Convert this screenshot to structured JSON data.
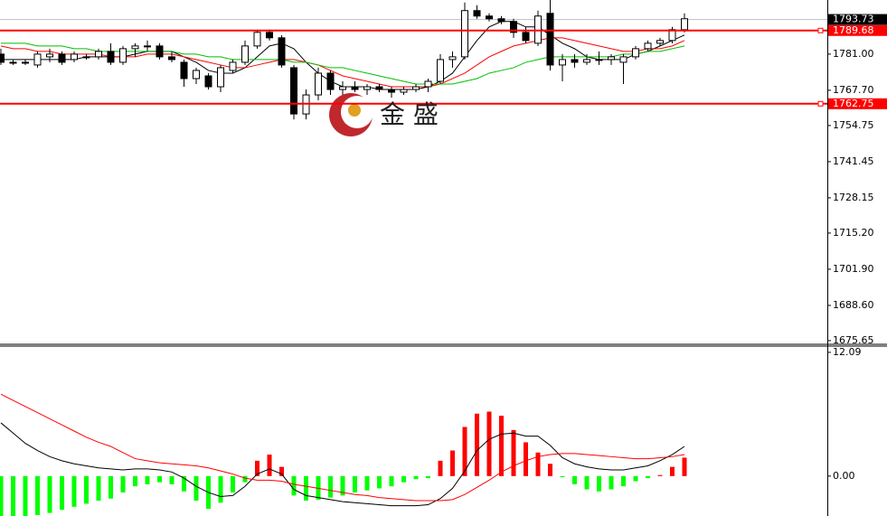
{
  "chart_data": [
    {
      "type": "candlestick",
      "open": [
        1781,
        1778,
        1778,
        1777,
        1780,
        1781,
        1779,
        1780,
        1780,
        1782,
        1778,
        1783,
        1784,
        1784,
        1780,
        1778,
        1772,
        1773,
        1769,
        1775,
        1778,
        1784,
        1789,
        1787,
        1776,
        1759,
        1766,
        1774,
        1768,
        1769,
        1768,
        1769,
        1768,
        1767,
        1768,
        1769,
        1771,
        1779,
        1780,
        1797,
        1795,
        1794,
        1793,
        1789,
        1785,
        1796,
        1777,
        1779,
        1778,
        1779,
        1779,
        1778,
        1780,
        1783,
        1785,
        1786,
        1790
      ],
      "high": [
        1783,
        1779,
        1779,
        1782,
        1783,
        1782,
        1782,
        1781,
        1783,
        1785,
        1784,
        1785,
        1786,
        1785,
        1782,
        1779,
        1776,
        1774,
        1777,
        1779,
        1786,
        1790,
        1790,
        1788,
        1777,
        1768,
        1776,
        1775,
        1771,
        1771,
        1770,
        1770,
        1769,
        1769,
        1770,
        1772,
        1781,
        1782,
        1800,
        1799,
        1796,
        1795,
        1794,
        1791,
        1797,
        1801,
        1781,
        1781,
        1781,
        1782,
        1781,
        1781,
        1784,
        1786,
        1787,
        1791,
        1796
      ],
      "low": [
        1777,
        1777,
        1777,
        1776,
        1778,
        1777,
        1778,
        1779,
        1779,
        1777,
        1777,
        1780,
        1782,
        1779,
        1778,
        1769,
        1770,
        1768,
        1767,
        1774,
        1777,
        1783,
        1786,
        1776,
        1757,
        1757,
        1764,
        1766,
        1766,
        1767,
        1766,
        1767,
        1765,
        1766,
        1767,
        1767,
        1770,
        1776,
        1779,
        1794,
        1793,
        1792,
        1787,
        1785,
        1784,
        1775,
        1771,
        1776,
        1777,
        1777,
        1777,
        1770,
        1779,
        1782,
        1784,
        1785,
        1789
      ],
      "close": [
        1778,
        1778,
        1778,
        1781,
        1781,
        1778,
        1781,
        1780,
        1782,
        1778,
        1783,
        1784,
        1784,
        1780,
        1779,
        1772,
        1775,
        1769,
        1776,
        1778,
        1784,
        1789,
        1787,
        1777,
        1759,
        1766,
        1774,
        1768,
        1769,
        1768,
        1769,
        1768,
        1767,
        1768,
        1769,
        1771,
        1779,
        1780,
        1797,
        1795,
        1794,
        1793,
        1789,
        1786,
        1795,
        1777,
        1779,
        1778,
        1779,
        1779,
        1780,
        1780,
        1783,
        1785,
        1786,
        1790,
        1794
      ],
      "up_color": "#ffffff",
      "down_color": "#000000",
      "moving_averages": [
        {
          "color": "#000000",
          "values": [
            1779,
            1779,
            1779,
            1779,
            1779,
            1779,
            1779,
            1780,
            1780,
            1780,
            1780,
            1781,
            1782,
            1782,
            1782,
            1780,
            1778,
            1775,
            1774,
            1774,
            1776,
            1780,
            1784,
            1785,
            1783,
            1778,
            1774,
            1771,
            1769,
            1769,
            1769,
            1768,
            1768,
            1768,
            1768,
            1769,
            1771,
            1774,
            1780,
            1786,
            1791,
            1793,
            1793,
            1791,
            1791,
            1788,
            1785,
            1783,
            1780,
            1779,
            1779,
            1779,
            1781,
            1782,
            1784,
            1786,
            1788
          ]
        },
        {
          "color": "#ff0000",
          "values": [
            1784,
            1783,
            1783,
            1782,
            1782,
            1781,
            1781,
            1781,
            1781,
            1780,
            1780,
            1780,
            1781,
            1781,
            1781,
            1780,
            1779,
            1778,
            1777,
            1776,
            1776,
            1777,
            1778,
            1779,
            1779,
            1778,
            1777,
            1775,
            1773,
            1772,
            1771,
            1770,
            1769,
            1769,
            1769,
            1769,
            1770,
            1772,
            1774,
            1777,
            1780,
            1782,
            1784,
            1785,
            1786,
            1787,
            1787,
            1786,
            1785,
            1784,
            1783,
            1782,
            1782,
            1783,
            1783,
            1784,
            1786
          ]
        },
        {
          "color": "#00c000",
          "values": [
            1785,
            1785,
            1785,
            1784,
            1784,
            1784,
            1783,
            1783,
            1782,
            1782,
            1782,
            1782,
            1782,
            1782,
            1782,
            1781,
            1781,
            1780,
            1780,
            1779,
            1779,
            1779,
            1779,
            1779,
            1778,
            1778,
            1777,
            1776,
            1776,
            1775,
            1774,
            1773,
            1772,
            1771,
            1770,
            1770,
            1770,
            1770,
            1771,
            1772,
            1774,
            1775,
            1776,
            1778,
            1779,
            1780,
            1780,
            1780,
            1780,
            1780,
            1780,
            1781,
            1781,
            1782,
            1782,
            1783,
            1784
          ]
        }
      ],
      "ylim": [
        1674.3,
        1800.9
      ],
      "yticks": [
        {
          "value": 1781,
          "label": "1781.00"
        },
        {
          "value": 1767.7,
          "label": "1767.70"
        },
        {
          "value": 1754.75,
          "label": "1754.75"
        },
        {
          "value": 1741.45,
          "label": "1741.45"
        },
        {
          "value": 1728.15,
          "label": "1728.15"
        },
        {
          "value": 1715.2,
          "label": "1715.20"
        },
        {
          "value": 1701.9,
          "label": "1701.90"
        },
        {
          "value": 1688.6,
          "label": "1688.60"
        },
        {
          "value": 1675.65,
          "label": "1675.65"
        }
      ],
      "levels": [
        1789.68,
        1762.75
      ],
      "level_color": "#ff0000",
      "last_price": 1793.73,
      "watermark": "金 盛"
    },
    {
      "type": "macd",
      "histogram": [
        -4.2,
        -4.1,
        -4.0,
        -3.8,
        -3.6,
        -3.3,
        -3.0,
        -2.7,
        -2.4,
        -2.2,
        -1.6,
        -1.0,
        -0.8,
        -0.6,
        -0.8,
        -1.5,
        -2.4,
        -3.2,
        -2.6,
        -1.6,
        -0.6,
        1.5,
        2.1,
        0.9,
        -1.9,
        -2.4,
        -2.3,
        -2.1,
        -1.9,
        -1.6,
        -1.4,
        -1.2,
        -1.0,
        -0.6,
        -0.3,
        -0.2,
        1.5,
        2.5,
        4.8,
        6.1,
        6.3,
        5.9,
        4.5,
        3.3,
        2.3,
        1.2,
        -0.1,
        -0.8,
        -1.3,
        -1.5,
        -1.3,
        -1.0,
        -0.5,
        -0.2,
        0.1,
        0.9,
        1.8
      ],
      "pos_color": "#ff0000",
      "neg_color": "#00ff00",
      "series": [
        {
          "color": "#000000",
          "values": [
            5.2,
            4.2,
            3.2,
            2.5,
            1.9,
            1.5,
            1.2,
            1.0,
            0.8,
            0.7,
            0.6,
            0.7,
            0.7,
            0.6,
            0.4,
            -0.2,
            -1.0,
            -1.6,
            -2.0,
            -1.9,
            -1.0,
            0.2,
            0.7,
            0.2,
            -1.3,
            -1.9,
            -2.1,
            -2.3,
            -2.5,
            -2.6,
            -2.7,
            -2.8,
            -2.9,
            -2.9,
            -2.9,
            -2.8,
            -2.2,
            -1.2,
            0.5,
            2.5,
            3.6,
            4.1,
            4.2,
            3.9,
            3.9,
            3.0,
            1.8,
            1.2,
            0.9,
            0.7,
            0.6,
            0.6,
            0.8,
            1.0,
            1.5,
            2.1,
            2.9
          ]
        },
        {
          "color": "#ff0000",
          "values": [
            8.0,
            7.4,
            6.8,
            6.2,
            5.6,
            5.0,
            4.4,
            3.8,
            3.3,
            2.9,
            2.3,
            1.7,
            1.5,
            1.3,
            1.2,
            1.1,
            1.0,
            0.8,
            0.5,
            0.2,
            -0.2,
            -0.4,
            -0.4,
            -0.5,
            -0.8,
            -1.0,
            -1.2,
            -1.4,
            -1.6,
            -1.8,
            -1.9,
            -2.1,
            -2.2,
            -2.3,
            -2.4,
            -2.4,
            -2.4,
            -2.3,
            -1.8,
            -1.1,
            -0.4,
            0.4,
            1.0,
            1.5,
            1.9,
            2.1,
            2.2,
            2.2,
            2.1,
            2.0,
            1.9,
            1.8,
            1.7,
            1.7,
            1.8,
            1.9,
            2.1
          ]
        }
      ],
      "ylim": [
        -3.9,
        12.7
      ],
      "yticks": [
        12.09,
        {
          "value": 0,
          "label": "0.00"
        }
      ]
    }
  ]
}
